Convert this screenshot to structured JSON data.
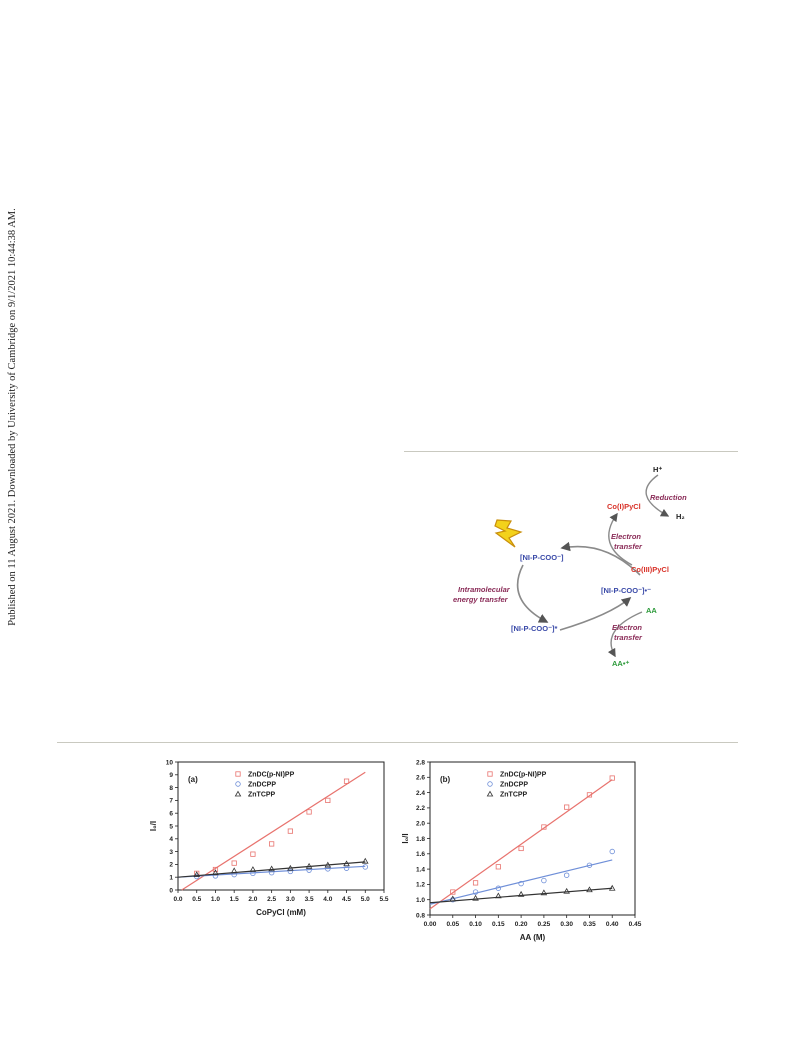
{
  "sidebar_note": "Published on 11 August 2021. Downloaded by University of Cambridge on 9/1/2021 10:44:38 AM.",
  "scheme": {
    "nodes": {
      "excited": "[NI-P-COO⁻]*",
      "ground": "[NI-P-COO⁻]",
      "radical": "[NI-P-COO⁻]•⁻",
      "co3": "Co(III)PyCl",
      "co1": "Co(I)PyCl",
      "h_plus": "H⁺",
      "h2": "H₂",
      "aa": "AA",
      "aa_plus": "AA•⁺"
    },
    "labels": {
      "intramolecular_1": "Intramolecular",
      "intramolecular_2": "energy transfer",
      "et_top_1": "Electron",
      "et_top_2": "transfer",
      "et_bottom_1": "Electron",
      "et_bottom_2": "transfer",
      "reduction": "Reduction"
    }
  },
  "chart_data": [
    {
      "type": "scatter",
      "panel_label": "(a)",
      "xlabel": "CoPyCl (mM)",
      "ylabel": "I₀/I",
      "xlim": [
        0.0,
        5.5
      ],
      "ylim": [
        0,
        10
      ],
      "xticks": [
        "0.0",
        "0.5",
        "1.0",
        "1.5",
        "2.0",
        "2.5",
        "3.0",
        "3.5",
        "4.0",
        "4.5",
        "5.0",
        "5.5"
      ],
      "yticks": [
        "0",
        "1",
        "2",
        "3",
        "4",
        "5",
        "6",
        "7",
        "8",
        "9",
        "10"
      ],
      "legend_position": "top",
      "series": [
        {
          "name": "ZnDC(p-NI)PP",
          "marker": "square",
          "color": "#e8736e",
          "x": [
            0.5,
            1.0,
            1.5,
            2.0,
            2.5,
            3.0,
            3.5,
            4.0,
            4.5
          ],
          "y": [
            1.3,
            1.6,
            2.1,
            2.8,
            3.6,
            4.6,
            6.1,
            7.0,
            8.5
          ],
          "fit": [
            [
              0.1,
              0
            ],
            [
              5.0,
              9.2
            ]
          ]
        },
        {
          "name": "ZnDCPP",
          "marker": "circle",
          "color": "#6f8fd8",
          "x": [
            0.5,
            1.0,
            1.5,
            2.0,
            2.5,
            3.0,
            3.5,
            4.0,
            4.5,
            5.0
          ],
          "y": [
            1.05,
            1.1,
            1.2,
            1.3,
            1.35,
            1.45,
            1.55,
            1.65,
            1.7,
            1.8
          ],
          "fit": [
            [
              0,
              1.0
            ],
            [
              5.0,
              1.85
            ]
          ]
        },
        {
          "name": "ZnTCPP",
          "marker": "triangle",
          "color": "#333333",
          "x": [
            0.5,
            1.0,
            1.5,
            2.0,
            2.5,
            3.0,
            3.5,
            4.0,
            4.5,
            5.0
          ],
          "y": [
            1.2,
            1.35,
            1.5,
            1.6,
            1.65,
            1.7,
            1.85,
            1.95,
            2.05,
            2.25
          ],
          "fit": [
            [
              0,
              1.0
            ],
            [
              5.0,
              2.2
            ]
          ]
        }
      ]
    },
    {
      "type": "scatter",
      "panel_label": "(b)",
      "xlabel": "AA (M)",
      "ylabel": "I₀/I",
      "xlim": [
        0.0,
        0.45
      ],
      "ylim": [
        0.8,
        2.8
      ],
      "xticks": [
        "0.00",
        "0.05",
        "0.10",
        "0.15",
        "0.20",
        "0.25",
        "0.30",
        "0.35",
        "0.40",
        "0.45"
      ],
      "yticks": [
        "0.8",
        "1.0",
        "1.2",
        "1.4",
        "1.6",
        "1.8",
        "2.0",
        "2.2",
        "2.4",
        "2.6",
        "2.8"
      ],
      "legend_position": "top",
      "series": [
        {
          "name": "ZnDC(p-NI)PP",
          "marker": "square",
          "color": "#e8736e",
          "x": [
            0.05,
            0.1,
            0.15,
            0.2,
            0.25,
            0.3,
            0.35,
            0.4
          ],
          "y": [
            1.1,
            1.22,
            1.43,
            1.67,
            1.95,
            2.21,
            2.37,
            2.59
          ],
          "fit": [
            [
              0,
              0.88
            ],
            [
              0.4,
              2.57
            ]
          ]
        },
        {
          "name": "ZnDCPP",
          "marker": "circle",
          "color": "#6f8fd8",
          "x": [
            0.05,
            0.1,
            0.15,
            0.2,
            0.25,
            0.3,
            0.35,
            0.4
          ],
          "y": [
            1.0,
            1.1,
            1.15,
            1.21,
            1.25,
            1.32,
            1.45,
            1.63
          ],
          "fit": [
            [
              0,
              0.94
            ],
            [
              0.4,
              1.52
            ]
          ]
        },
        {
          "name": "ZnTCPP",
          "marker": "triangle",
          "color": "#333333",
          "x": [
            0.05,
            0.1,
            0.15,
            0.2,
            0.25,
            0.3,
            0.35,
            0.4
          ],
          "y": [
            1.01,
            1.02,
            1.05,
            1.07,
            1.09,
            1.11,
            1.13,
            1.15
          ],
          "fit": [
            [
              0,
              0.96
            ],
            [
              0.4,
              1.15
            ]
          ]
        }
      ]
    }
  ]
}
